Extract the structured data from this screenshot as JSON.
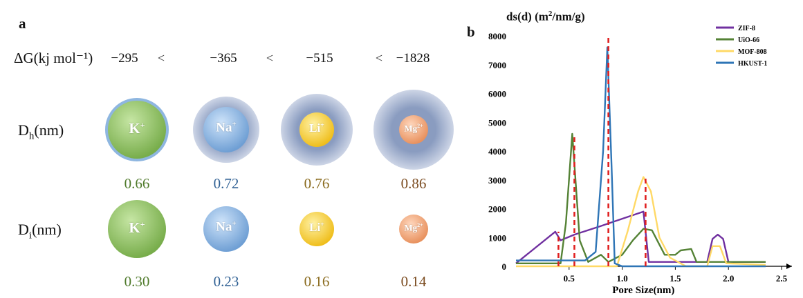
{
  "panel_a": {
    "letter": "a",
    "dg_label": "ΔG(kj mol⁻¹)",
    "dg_values": [
      "−295",
      "−365",
      "−515",
      "−1828"
    ],
    "lt_symbol": "<",
    "dh_label_main": "D",
    "dh_label_sub": "h",
    "dh_label_unit": "(nm)",
    "di_label_main": "D",
    "di_label_sub": "i",
    "di_label_unit": "(nm)",
    "ions": [
      {
        "name": "K",
        "charge": "+",
        "dh": "0.66",
        "di": "0.30",
        "color": "#4f7a2b",
        "fill": "#8ec466"
      },
      {
        "name": "Na",
        "charge": "+",
        "dh": "0.72",
        "di": "0.23",
        "color": "#2e5f93",
        "fill": "#8fbae8"
      },
      {
        "name": "Li",
        "charge": "+",
        "dh": "0.76",
        "di": "0.16",
        "color": "#8a6b1e",
        "fill": "#f5cc3a"
      },
      {
        "name": "Mg",
        "charge": "2+",
        "dh": "0.86",
        "di": "0.14",
        "color": "#7a4a1e",
        "fill": "#f0a878"
      }
    ]
  },
  "panel_b": {
    "letter": "b",
    "ylabel_text": "ds(d) (m",
    "ylabel_sup": "2",
    "ylabel_tail": "/nm/g)",
    "xlabel": "Pore Size(nm)"
  },
  "chart_data": {
    "type": "line",
    "title": "",
    "xlabel": "Pore Size(nm)",
    "ylabel": "ds(d) (m2/nm/g)",
    "xlim": [
      0,
      2.5
    ],
    "ylim": [
      0,
      8000
    ],
    "x_ticks": [
      0.5,
      1.0,
      1.5,
      2.0,
      2.5
    ],
    "x_tick_labels": [
      "0.5",
      "1.0",
      "1.5",
      "2.0",
      "2.5"
    ],
    "y_ticks": [
      0,
      1000,
      2000,
      3000,
      4000,
      5000,
      6000,
      7000,
      8000
    ],
    "y_tick_labels": [
      "0",
      "1000",
      "2000",
      "3000",
      "4000",
      "5000",
      "6000",
      "7000",
      "8000"
    ],
    "legend_position": "top-right",
    "series": [
      {
        "name": "ZIF-8",
        "color": "#7030a0",
        "points": [
          [
            0,
            100
          ],
          [
            0.37,
            1200
          ],
          [
            0.42,
            900
          ],
          [
            0.55,
            1100
          ],
          [
            0.8,
            1400
          ],
          [
            1.0,
            1650
          ],
          [
            1.2,
            1900
          ],
          [
            1.25,
            150
          ],
          [
            1.6,
            150
          ],
          [
            1.8,
            150
          ],
          [
            1.85,
            950
          ],
          [
            1.9,
            1100
          ],
          [
            1.95,
            950
          ],
          [
            2.0,
            150
          ],
          [
            2.35,
            150
          ]
        ]
      },
      {
        "name": "UiO-66",
        "color": "#548235",
        "points": [
          [
            0,
            100
          ],
          [
            0.42,
            100
          ],
          [
            0.47,
            1500
          ],
          [
            0.53,
            4600
          ],
          [
            0.6,
            900
          ],
          [
            0.68,
            150
          ],
          [
            0.8,
            400
          ],
          [
            0.87,
            150
          ],
          [
            1.0,
            400
          ],
          [
            1.1,
            900
          ],
          [
            1.2,
            1300
          ],
          [
            1.28,
            1250
          ],
          [
            1.4,
            400
          ],
          [
            1.5,
            400
          ],
          [
            1.55,
            550
          ],
          [
            1.65,
            600
          ],
          [
            1.7,
            150
          ],
          [
            2.35,
            150
          ]
        ]
      },
      {
        "name": "MOF-808",
        "color": "#ffd966",
        "points": [
          [
            0,
            0
          ],
          [
            0.95,
            0
          ],
          [
            1.05,
            1200
          ],
          [
            1.15,
            2600
          ],
          [
            1.2,
            3100
          ],
          [
            1.27,
            2600
          ],
          [
            1.35,
            1000
          ],
          [
            1.45,
            300
          ],
          [
            1.6,
            0
          ],
          [
            1.8,
            0
          ],
          [
            1.85,
            700
          ],
          [
            1.92,
            700
          ],
          [
            1.98,
            100
          ],
          [
            2.35,
            50
          ]
        ]
      },
      {
        "name": "HKUST-1",
        "color": "#2e75b6",
        "points": [
          [
            0,
            200
          ],
          [
            0.65,
            200
          ],
          [
            0.75,
            500
          ],
          [
            0.82,
            4000
          ],
          [
            0.86,
            7600
          ],
          [
            0.9,
            3500
          ],
          [
            0.93,
            100
          ],
          [
            1.0,
            0
          ],
          [
            2.35,
            0
          ]
        ]
      }
    ],
    "markers": {
      "color": "#e02020",
      "style": "dashed",
      "x": [
        0.4,
        0.55,
        0.87,
        1.22
      ],
      "y_top": [
        1200,
        4600,
        8000,
        3100
      ]
    }
  }
}
